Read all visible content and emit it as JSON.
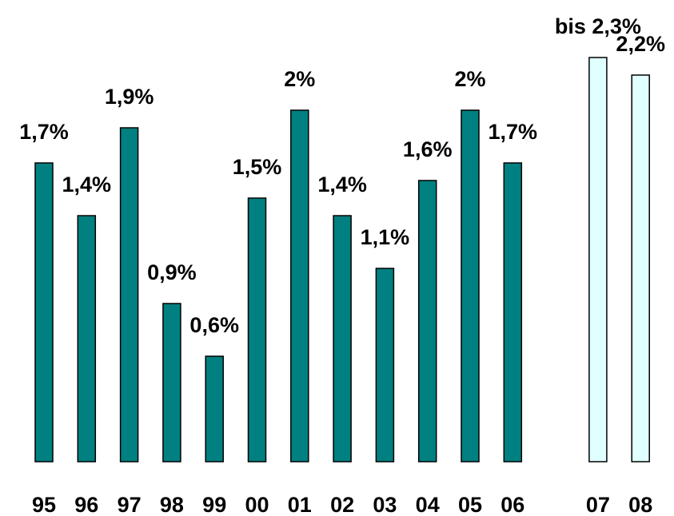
{
  "chart_data": {
    "type": "bar",
    "categories": [
      "95",
      "96",
      "97",
      "98",
      "99",
      "00",
      "01",
      "02",
      "03",
      "04",
      "05",
      "06",
      "07",
      "08"
    ],
    "values": [
      1.7,
      1.4,
      1.9,
      0.9,
      0.6,
      1.5,
      2,
      1.4,
      1.1,
      1.6,
      2,
      1.7,
      2.3,
      2.2
    ],
    "value_labels": [
      "1,7%",
      "1,4%",
      "1,9%",
      "0,9%",
      "0,6%",
      "1,5%",
      "2%",
      "1,4%",
      "1,1%",
      "1,6%",
      "2%",
      "1,7%",
      "bis 2,3%",
      "2,2%"
    ],
    "colors": [
      "#008080",
      "#008080",
      "#008080",
      "#008080",
      "#008080",
      "#008080",
      "#008080",
      "#008080",
      "#008080",
      "#008080",
      "#008080",
      "#008080",
      "#e0ffff",
      "#e0ffff"
    ]
  }
}
